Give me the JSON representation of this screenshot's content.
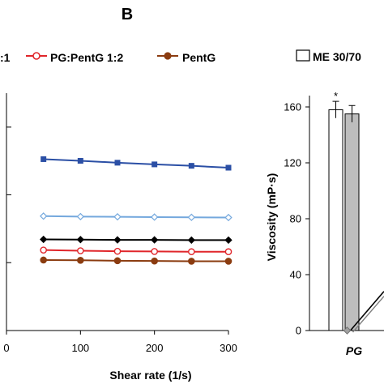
{
  "panel_label": "B",
  "legend": {
    "left_fragment": ":1",
    "pg_pentg_label": "PG:PentG 1:2",
    "pentg_label": "PentG",
    "me_label": "ME 30/70"
  },
  "colors": {
    "dark_blue": "#2b4fa5",
    "light_blue": "#74a8dd",
    "black": "#000000",
    "red": "#e0262b",
    "brown": "#8b3c10",
    "bar_gray": "#bdbdbd"
  },
  "chart_data": [
    {
      "type": "line",
      "xlabel": "Shear rate (1/s)",
      "ylabel": "",
      "xlim": [
        0,
        300
      ],
      "xticks": [
        "0",
        "100",
        "200",
        "300"
      ],
      "x": [
        50,
        100,
        150,
        200,
        250,
        300
      ],
      "grid": false,
      "legend_placement": "top",
      "series": [
        {
          "name": "",
          "color": "#2b4fa5",
          "marker": "square",
          "values": [
            0.722,
            0.715,
            0.707,
            0.7,
            0.694,
            0.686
          ]
        },
        {
          "name": "",
          "color": "#74a8dd",
          "marker": "diamond-open",
          "values": [
            0.482,
            0.48,
            0.479,
            0.478,
            0.477,
            0.476
          ]
        },
        {
          "name": "",
          "color": "#000000",
          "marker": "diamond",
          "values": [
            0.384,
            0.383,
            0.382,
            0.382,
            0.381,
            0.381
          ]
        },
        {
          "name": "PG:PentG 1:2",
          "color": "#e0262b",
          "marker": "circle-open",
          "values": [
            0.339,
            0.336,
            0.334,
            0.333,
            0.332,
            0.332
          ]
        },
        {
          "name": "PentG",
          "color": "#8b3c10",
          "marker": "circle",
          "values": [
            0.297,
            0.296,
            0.294,
            0.293,
            0.292,
            0.292
          ]
        }
      ]
    },
    {
      "type": "bar",
      "xlabel": "",
      "ylabel": "Viscosity (mP·s)",
      "ylim": [
        0,
        175
      ],
      "yticks": [
        "0",
        "40",
        "80",
        "120",
        "160"
      ],
      "categories": [
        "PG"
      ],
      "grid": false,
      "annotation": "*",
      "series": [
        {
          "name": "ME 30/70",
          "fill": "#ffffff",
          "values": [
            158
          ],
          "error": [
            6
          ]
        },
        {
          "name": "",
          "fill": "#bdbdbd",
          "values": [
            155
          ],
          "error": [
            6
          ]
        }
      ],
      "line_overlay": {
        "from_value": 0,
        "to_value": 28
      }
    }
  ]
}
